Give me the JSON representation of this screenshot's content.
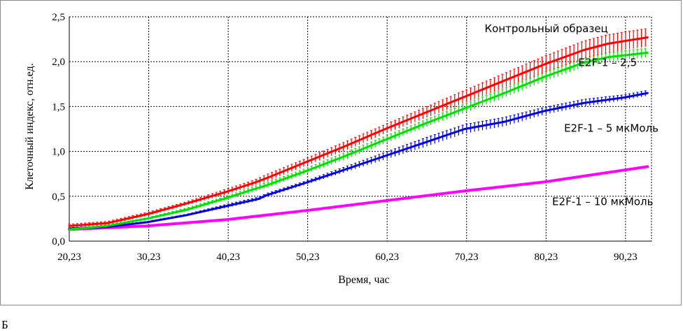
{
  "panel_label": "Б",
  "chart_data": {
    "type": "line",
    "title": "",
    "xlabel": "Время, час",
    "ylabel": "Клеточный индекс, отн.ед.",
    "xlim": [
      20.23,
      93.5
    ],
    "ylim": [
      0,
      2.5
    ],
    "x_ticks": [
      20.23,
      30.23,
      40.23,
      50.23,
      60.23,
      70.23,
      80.23,
      90.23
    ],
    "x_tick_labels": [
      "20,23",
      "30,23",
      "40,23",
      "50,23",
      "60,23",
      "70,23",
      "80,23",
      "90,23"
    ],
    "y_ticks": [
      0,
      0.5,
      1,
      1.5,
      2,
      2.5
    ],
    "y_tick_labels": [
      "0,0",
      "0,5",
      "1,0",
      "1,5",
      "2,0",
      "2,5"
    ],
    "grid": true,
    "legend": "none",
    "series": [
      {
        "name": "Контрольный образец",
        "color": "#ff0000",
        "error_bars": true,
        "x": [
          20.23,
          25,
          30,
          35,
          40,
          43.5,
          45,
          50,
          55,
          60,
          65,
          70,
          75,
          80,
          85,
          88,
          93
        ],
        "y": [
          0.17,
          0.2,
          0.3,
          0.42,
          0.55,
          0.65,
          0.7,
          0.88,
          1.06,
          1.25,
          1.43,
          1.61,
          1.79,
          1.97,
          2.13,
          2.2,
          2.27
        ],
        "err": [
          0.02,
          0.02,
          0.02,
          0.02,
          0.03,
          0.03,
          0.04,
          0.04,
          0.05,
          0.05,
          0.06,
          0.07,
          0.08,
          0.09,
          0.1,
          0.1,
          0.1
        ]
      },
      {
        "name": "E2F-1 – 2,5",
        "color": "#00e000",
        "error_bars": true,
        "x": [
          20.23,
          25,
          30,
          35,
          40,
          43.5,
          45,
          50,
          55,
          60,
          65,
          70,
          75,
          80,
          85,
          88,
          93
        ],
        "y": [
          0.13,
          0.17,
          0.25,
          0.35,
          0.48,
          0.58,
          0.62,
          0.78,
          0.95,
          1.13,
          1.31,
          1.48,
          1.65,
          1.83,
          1.99,
          2.05,
          2.1
        ],
        "err": [
          0.01,
          0.01,
          0.01,
          0.02,
          0.02,
          0.03,
          0.03,
          0.03,
          0.04,
          0.04,
          0.04,
          0.05,
          0.05,
          0.05,
          0.05,
          0.05,
          0.05
        ]
      },
      {
        "name": "E2F-1 – 5 мкМоль",
        "color": "#0000e0",
        "error_bars": true,
        "x": [
          20.23,
          25,
          30,
          35,
          40,
          44,
          45,
          50,
          55,
          60,
          65,
          70,
          75,
          80,
          85,
          90,
          93
        ],
        "y": [
          0.14,
          0.16,
          0.21,
          0.29,
          0.39,
          0.47,
          0.51,
          0.65,
          0.8,
          0.95,
          1.1,
          1.25,
          1.33,
          1.45,
          1.54,
          1.6,
          1.65
        ],
        "err": [
          0.01,
          0.01,
          0.01,
          0.01,
          0.02,
          0.02,
          0.02,
          0.02,
          0.03,
          0.04,
          0.05,
          0.05,
          0.05,
          0.04,
          0.04,
          0.03,
          0.03
        ]
      },
      {
        "name": "E2F-1 – 10 мкМоль",
        "color": "#ff00ff",
        "error_bars": false,
        "x": [
          20.23,
          30,
          40,
          50,
          60,
          70,
          80,
          93
        ],
        "y": [
          0.13,
          0.17,
          0.24,
          0.34,
          0.45,
          0.56,
          0.66,
          0.83
        ],
        "err": []
      }
    ],
    "annotations": [
      {
        "text": "Контрольный образец",
        "x": 72.5,
        "y": 2.33
      },
      {
        "text": "E2F-1 – 2,5",
        "x": 84.3,
        "y": 1.95
      },
      {
        "text": "E2F-1 – 5 мкМоль",
        "x": 82.5,
        "y": 1.22
      },
      {
        "text": "E2F-1 – 10 мкМоль",
        "x": 81,
        "y": 0.4
      }
    ]
  }
}
